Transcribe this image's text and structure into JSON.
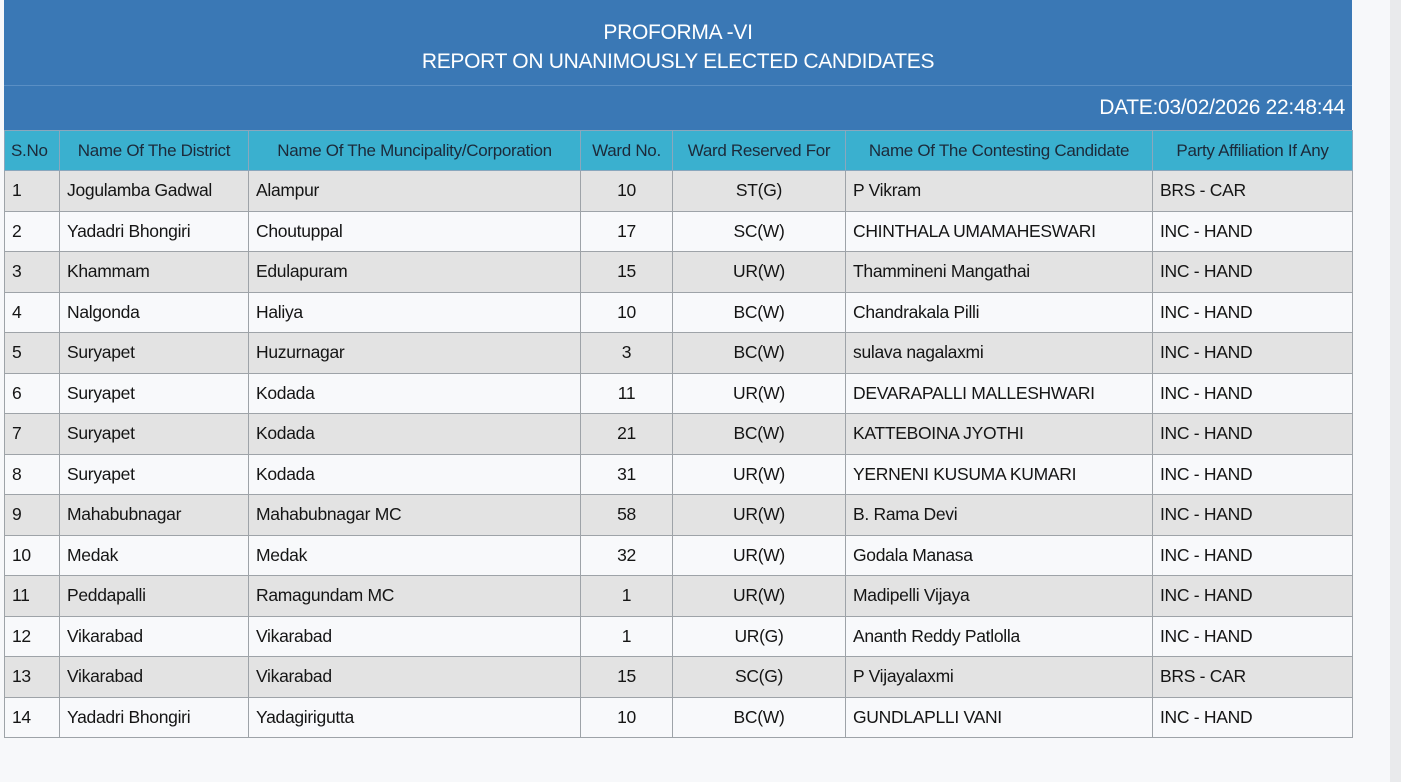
{
  "report": {
    "proforma": "PROFORMA -VI",
    "title": "REPORT ON UNANIMOUSLY ELECTED CANDIDATES",
    "date": "DATE:03/02/2026 22:48:44"
  },
  "table": {
    "headers": [
      "S.No",
      "Name Of The District",
      "Name Of The Muncipality/Corporation",
      "Ward No.",
      "Ward Reserved For",
      "Name Of The Contesting Candidate",
      "Party Affiliation If Any"
    ],
    "rows": [
      [
        "1",
        "Jogulamba Gadwal",
        "Alampur",
        "10",
        "ST(G)",
        "P Vikram",
        "BRS - CAR"
      ],
      [
        "2",
        "Yadadri Bhongiri",
        "Choutuppal",
        "17",
        "SC(W)",
        "CHINTHALA UMAMAHESWARI",
        "INC - HAND"
      ],
      [
        "3",
        "Khammam",
        "Edulapuram",
        "15",
        "UR(W)",
        "Thammineni Mangathai",
        "INC - HAND"
      ],
      [
        "4",
        "Nalgonda",
        "Haliya",
        "10",
        "BC(W)",
        "Chandrakala Pilli",
        "INC - HAND"
      ],
      [
        "5",
        "Suryapet",
        "Huzurnagar",
        "3",
        "BC(W)",
        "sulava nagalaxmi",
        "INC - HAND"
      ],
      [
        "6",
        "Suryapet",
        "Kodada",
        "11",
        "UR(W)",
        "DEVARAPALLI MALLESHWARI",
        "INC - HAND"
      ],
      [
        "7",
        "Suryapet",
        "Kodada",
        "21",
        "BC(W)",
        "KATTEBOINA JYOTHI",
        "INC - HAND"
      ],
      [
        "8",
        "Suryapet",
        "Kodada",
        "31",
        "UR(W)",
        "YERNENI KUSUMA KUMARI",
        "INC - HAND"
      ],
      [
        "9",
        "Mahabubnagar",
        "Mahabubnagar MC",
        "58",
        "UR(W)",
        "B. Rama Devi",
        "INC - HAND"
      ],
      [
        "10",
        "Medak",
        "Medak",
        "32",
        "UR(W)",
        "Godala Manasa",
        "INC - HAND"
      ],
      [
        "11",
        "Peddapalli",
        "Ramagundam MC",
        "1",
        "UR(W)",
        "Madipelli Vijaya",
        "INC - HAND"
      ],
      [
        "12",
        "Vikarabad",
        "Vikarabad",
        "1",
        "UR(G)",
        "Ananth Reddy Patlolla",
        "INC - HAND"
      ],
      [
        "13",
        "Vikarabad",
        "Vikarabad",
        "15",
        "SC(G)",
        "P Vijayalaxmi",
        "BRS - CAR"
      ],
      [
        "14",
        "Yadadri Bhongiri",
        "Yadagirigutta",
        "10",
        "BC(W)",
        "GUNDLAPLLI VANI",
        "INC - HAND"
      ]
    ]
  },
  "colors": {
    "title_band": "#3a78b5",
    "header_row": "#3ab0cf",
    "row_odd": "#e3e3e3",
    "row_even": "#f8f9fb"
  }
}
